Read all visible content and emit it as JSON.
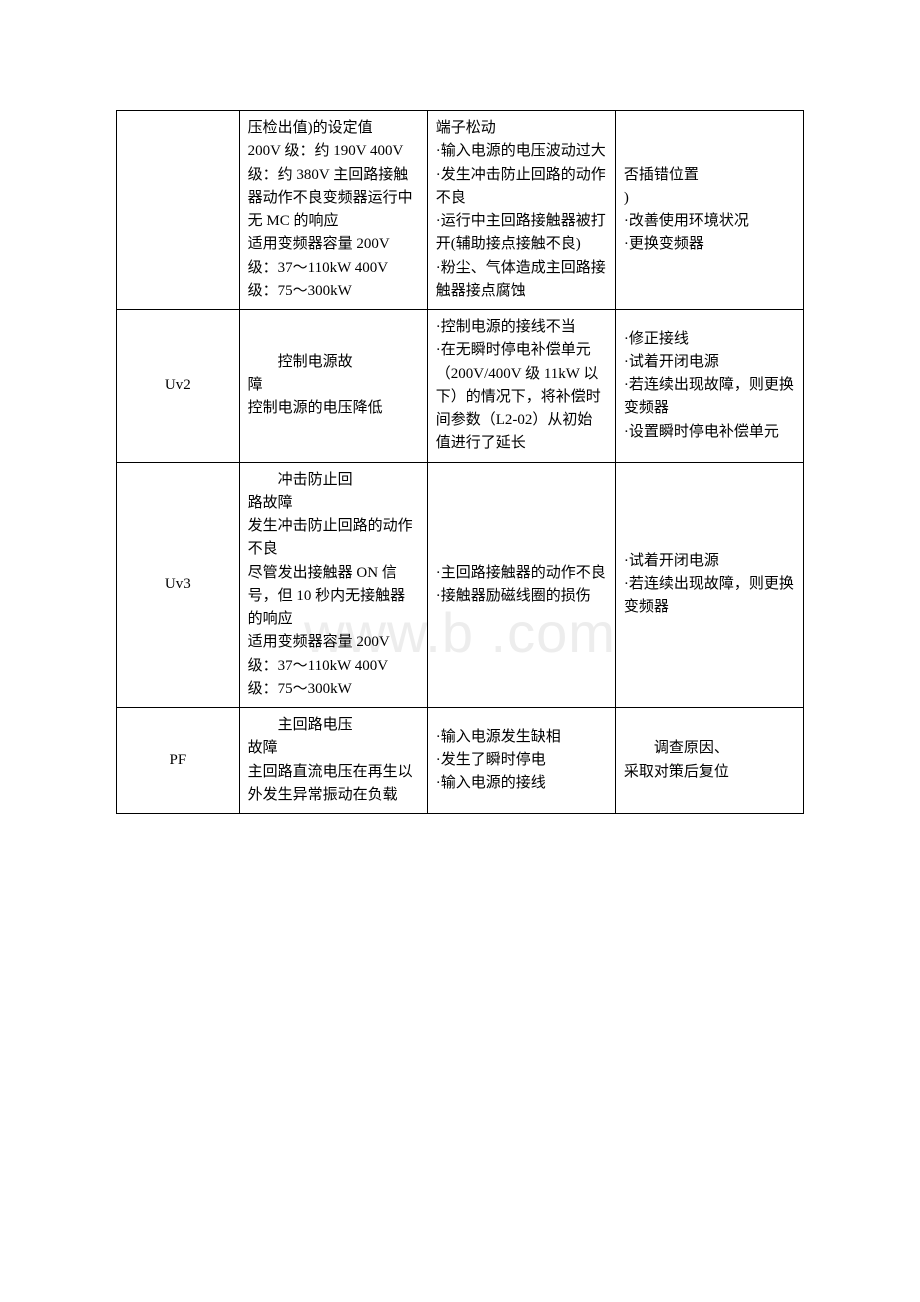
{
  "watermark": "www.b    .com",
  "table": {
    "columns_width": [
      120,
      184,
      184,
      184
    ],
    "font_size": 15,
    "line_height": 1.55,
    "border_color": "#000000",
    "text_color": "#000000",
    "background_color": "#ffffff",
    "rows": [
      {
        "c1": "",
        "c2": "压检出值)的设定值\n200V 级：约 190V 400V 级：约 380V 主回路接触器动作不良变频器运行中无 MC 的响应\n适用变频器容量 200V 级：37～110kW 400V 级：75～300kW",
        "c3": "端子松动\n·输入电源的电压波动过大\n·发生冲击防止回路的动作不良\n·运行中主回路接触器被打开(辅助接点接触不良)\n·粉尘、气体造成主回路接触器接点腐蚀",
        "c4": "否插错位置\n)\n·改善使用环境状况\n·更换变频器"
      },
      {
        "c1": "Uv2",
        "c2_indent": "控制电源故",
        "c2_rest": "障\n控制电源的电压降低",
        "c3": "·控制电源的接线不当\n·在无瞬时停电补偿单元（200V/400V 级 11kW 以下）的情况下，将补偿时间参数（L2-02）从初始值进行了延长",
        "c4": "·修正接线\n·试着开闭电源\n·若连续出现故障，则更换变频器\n·设置瞬时停电补偿单元"
      },
      {
        "c1": "Uv3",
        "c2_indent": "冲击防止回",
        "c2_rest": "路故障\n发生冲击防止回路的动作不良\n尽管发出接触器 ON 信号，但 10 秒内无接触器的响应\n适用变频器容量 200V 级：37～110kW 400V 级：75～300kW",
        "c3": "·主回路接触器的动作不良\n·接触器励磁线圈的损伤",
        "c4": "·试着开闭电源\n·若连续出现故障，则更换变频器"
      },
      {
        "c1": "PF",
        "c2_indent": "主回路电压",
        "c2_rest": "故障\n主回路直流电压在再生以外发生异常振动在负载",
        "c3": "·输入电源发生缺相\n·发生了瞬时停电\n·输入电源的接线",
        "c4_indent": "调查原因、",
        "c4_rest": "采取对策后复位"
      }
    ]
  }
}
